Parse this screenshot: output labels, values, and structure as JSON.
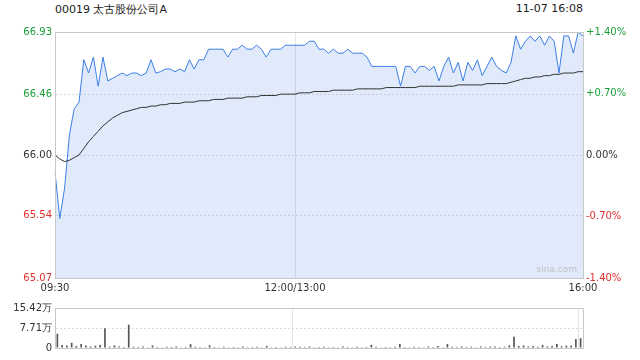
{
  "header": {
    "title": "00019 太古股份公司A",
    "timestamp": "11-07 16:08"
  },
  "chart_data": [
    {
      "type": "line",
      "annotations": [
        "sina.com"
      ],
      "categories": [
        "09:30",
        null,
        null,
        null,
        null,
        null,
        null,
        null,
        null,
        null,
        null,
        null,
        null,
        null,
        null,
        null,
        null,
        null,
        null,
        null,
        null,
        null,
        null,
        null,
        null,
        null,
        null,
        null,
        null,
        null,
        null,
        null,
        null,
        null,
        null,
        null,
        null,
        null,
        null,
        null,
        null,
        null,
        null,
        null,
        null,
        null,
        null,
        null,
        null,
        null,
        "12:00/13:00",
        null,
        null,
        null,
        null,
        null,
        null,
        null,
        null,
        null,
        null,
        null,
        null,
        null,
        null,
        null,
        null,
        null,
        null,
        null,
        null,
        null,
        null,
        null,
        null,
        null,
        null,
        null,
        null,
        null,
        null,
        null,
        null,
        null,
        null,
        null,
        null,
        null,
        null,
        null,
        null,
        null,
        null,
        null,
        null,
        null,
        null,
        null,
        null,
        null,
        null,
        null,
        null,
        null,
        null,
        null,
        null,
        null,
        null,
        null,
        "16:00"
      ],
      "series": [
        {
          "type": "area",
          "color": "#3d7fe6",
          "values": [
            65.87,
            65.52,
            65.75,
            66.15,
            66.35,
            66.4,
            66.72,
            66.62,
            66.74,
            66.52,
            66.74,
            66.56,
            66.58,
            66.6,
            66.62,
            66.6,
            66.62,
            66.62,
            66.6,
            66.62,
            66.72,
            66.62,
            66.63,
            66.65,
            66.65,
            66.63,
            66.65,
            66.63,
            66.72,
            66.65,
            66.72,
            66.72,
            66.8,
            66.8,
            66.8,
            66.8,
            66.74,
            66.8,
            66.8,
            66.83,
            66.8,
            66.8,
            66.83,
            66.8,
            66.74,
            66.8,
            66.8,
            66.8,
            66.83,
            66.83,
            66.83,
            66.83,
            66.83,
            66.86,
            66.86,
            66.8,
            66.8,
            66.77,
            66.8,
            66.77,
            66.77,
            66.8,
            66.77,
            66.77,
            66.77,
            66.74,
            66.67,
            66.67,
            66.67,
            66.67,
            66.67,
            66.67,
            66.52,
            66.67,
            66.67,
            66.62,
            66.67,
            66.67,
            66.64,
            66.67,
            66.56,
            66.67,
            66.74,
            66.62,
            66.7,
            66.56,
            66.7,
            66.64,
            66.72,
            66.6,
            66.67,
            66.74,
            66.67,
            66.64,
            66.62,
            66.7,
            66.9,
            66.8,
            66.86,
            66.9,
            66.86,
            66.9,
            66.83,
            66.9,
            66.86,
            66.62,
            66.9,
            66.9,
            66.77,
            66.93,
            66.9
          ]
        },
        {
          "type": "line",
          "color": "#333333",
          "values": [
            66.0,
            65.97,
            65.95,
            65.96,
            65.98,
            66.0,
            66.05,
            66.1,
            66.14,
            66.18,
            66.22,
            66.25,
            66.28,
            66.3,
            66.32,
            66.33,
            66.34,
            66.35,
            66.36,
            66.36,
            66.37,
            66.37,
            66.38,
            66.38,
            66.39,
            66.39,
            66.39,
            66.4,
            66.4,
            66.4,
            66.41,
            66.41,
            66.41,
            66.42,
            66.42,
            66.42,
            66.43,
            66.43,
            66.43,
            66.43,
            66.44,
            66.44,
            66.44,
            66.45,
            66.45,
            66.45,
            66.45,
            66.46,
            66.46,
            66.46,
            66.46,
            66.47,
            66.47,
            66.47,
            66.48,
            66.48,
            66.48,
            66.48,
            66.49,
            66.49,
            66.49,
            66.49,
            66.49,
            66.5,
            66.5,
            66.5,
            66.5,
            66.5,
            66.5,
            66.51,
            66.51,
            66.51,
            66.51,
            66.51,
            66.51,
            66.51,
            66.52,
            66.52,
            66.52,
            66.52,
            66.52,
            66.52,
            66.52,
            66.52,
            66.53,
            66.53,
            66.53,
            66.53,
            66.53,
            66.53,
            66.54,
            66.54,
            66.54,
            66.54,
            66.54,
            66.55,
            66.56,
            66.57,
            66.58,
            66.58,
            66.59,
            66.59,
            66.6,
            66.6,
            66.61,
            66.61,
            66.62,
            66.62,
            66.62,
            66.63,
            66.63
          ]
        }
      ],
      "ylim": [
        65.07,
        66.93
      ],
      "yticks": [
        65.07,
        65.54,
        {
          "value": 66.0,
          "label": "66.00"
        },
        66.46,
        66.93
      ],
      "y2lim": [
        -1.4,
        1.4
      ],
      "y2ticks": [
        {
          "value": -1.4,
          "label": "-1.40%"
        },
        {
          "value": -0.7,
          "label": "-0.70%"
        },
        {
          "value": 0,
          "label": "0.00%"
        },
        {
          "value": 0.7,
          "label": "+0.70%"
        },
        {
          "value": 1.4,
          "label": "+1.40%"
        }
      ],
      "grid": true,
      "tick_labels": true
    },
    {
      "type": "bar",
      "categories": [
        "09:30",
        null,
        null,
        null,
        null,
        null,
        null,
        null,
        null,
        null,
        null,
        null,
        null,
        null,
        null,
        null,
        null,
        null,
        null,
        null,
        null,
        null,
        null,
        null,
        null,
        null,
        null,
        null,
        null,
        null,
        null,
        null,
        null,
        null,
        null,
        null,
        null,
        null,
        null,
        null,
        null,
        null,
        null,
        null,
        null,
        null,
        null,
        null,
        null,
        null,
        "12:00/13:00",
        null,
        null,
        null,
        null,
        null,
        null,
        null,
        null,
        null,
        null,
        null,
        null,
        null,
        null,
        null,
        null,
        null,
        null,
        null,
        null,
        null,
        null,
        null,
        null,
        null,
        null,
        null,
        null,
        null,
        null,
        null,
        null,
        null,
        null,
        null,
        null,
        null,
        null,
        null,
        null,
        null,
        null,
        null,
        null,
        null,
        null,
        null,
        null,
        null,
        null,
        null,
        null,
        null,
        null,
        null,
        null,
        null,
        null,
        null,
        "16:00"
      ],
      "color": "#555555",
      "values": [
        5.5,
        1.2,
        1.0,
        2.0,
        0.8,
        1.5,
        1.0,
        0.6,
        0.9,
        1.2,
        7.6,
        0.5,
        1.0,
        0.6,
        0.4,
        9.0,
        0.5,
        0.4,
        0.6,
        0.3,
        1.0,
        0.4,
        0.3,
        0.5,
        0.4,
        0.6,
        0.3,
        0.4,
        1.5,
        0.5,
        0.4,
        0.3,
        1.0,
        0.4,
        0.3,
        0.5,
        0.3,
        0.4,
        0.3,
        0.6,
        0.3,
        0.4,
        0.5,
        0.3,
        0.8,
        0.3,
        0.4,
        0.3,
        0.5,
        0.4,
        0.6,
        0.5,
        0.4,
        0.6,
        0.3,
        0.4,
        0.5,
        0.3,
        0.4,
        0.3,
        0.6,
        0.4,
        0.3,
        0.5,
        0.3,
        0.4,
        1.2,
        0.5,
        0.3,
        0.4,
        0.3,
        0.5,
        1.5,
        0.4,
        0.3,
        0.5,
        0.4,
        0.3,
        0.6,
        0.4,
        0.8,
        0.3,
        1.5,
        0.5,
        0.4,
        0.6,
        0.4,
        0.5,
        0.3,
        0.6,
        0.4,
        0.5,
        0.6,
        0.4,
        0.5,
        1.0,
        4.3,
        0.8,
        1.0,
        0.6,
        0.8,
        0.5,
        1.2,
        0.6,
        0.8,
        1.5,
        0.7,
        0.9,
        1.0,
        3.5,
        3.8
      ],
      "ylim": [
        0,
        15.42
      ],
      "yticks": [
        0,
        {
          "value": 7.71,
          "label": "7.71万"
        },
        {
          "value": 15.42,
          "label": "15.42万"
        }
      ],
      "grid": true,
      "tick_labels": "y"
    }
  ]
}
